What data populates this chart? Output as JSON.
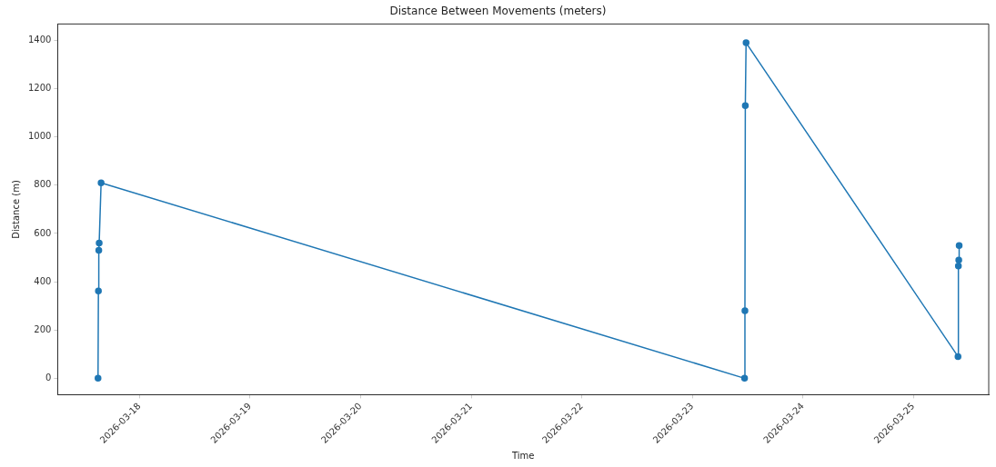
{
  "chart_data": {
    "type": "line",
    "title": "Distance Between Movements (meters)",
    "xlabel": "Time",
    "ylabel": "Distance (m)",
    "x": [
      "2026-03-17T15:00",
      "2026-03-17T15:05",
      "2026-03-17T15:10",
      "2026-03-17T15:15",
      "2026-03-17T15:40",
      "2026-03-23T11:20",
      "2026-03-23T11:25",
      "2026-03-23T11:30",
      "2026-03-23T11:40",
      "2026-03-25T09:40",
      "2026-03-25T09:45",
      "2026-03-25T09:50",
      "2026-03-25T09:55"
    ],
    "series": [
      {
        "color": "#1f77b4",
        "values": [
          0,
          362,
          530,
          560,
          810,
          0,
          280,
          1130,
          1390,
          90,
          465,
          490,
          550
        ]
      }
    ],
    "xlim": [
      "2026-03-17T06:15",
      "2026-03-25T16:20"
    ],
    "xticks": [
      "2026-03-18",
      "2026-03-19",
      "2026-03-20",
      "2026-03-21",
      "2026-03-22",
      "2026-03-23",
      "2026-03-24",
      "2026-03-25"
    ],
    "ylim": [
      -68,
      1468
    ],
    "yticks": [
      0,
      200,
      400,
      600,
      800,
      1000,
      1200,
      1400
    ],
    "marker": "circle",
    "line_style": "solid",
    "grid": false,
    "legend": false
  }
}
